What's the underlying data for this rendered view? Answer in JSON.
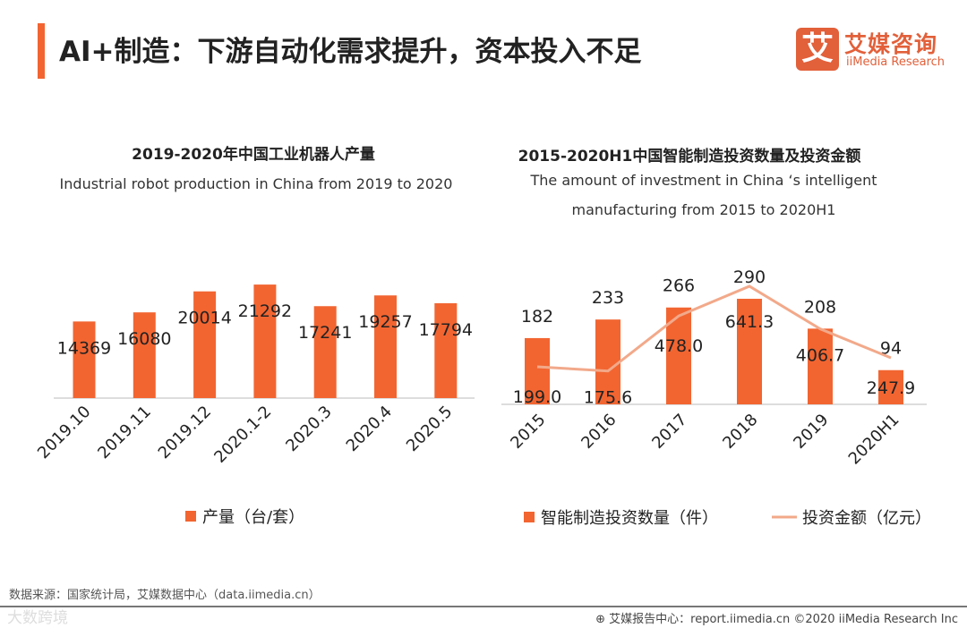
{
  "header": {
    "title": "AI+制造：下游自动化需求提升，资本投入不足",
    "logo_mark": "艾",
    "logo_cn": "艾媒咨询",
    "logo_en": "iiMedia Research"
  },
  "colors": {
    "accent": "#f26531",
    "bar": "#f26531",
    "line": "#f2a98a"
  },
  "chart_data": [
    {
      "type": "bar",
      "title": "2019-2020年中国工业机器人产量",
      "subtitle": "Industrial robot production in China from 2019 to 2020",
      "categories": [
        "2019.10",
        "2019.11",
        "2019.12",
        "2020.1-2",
        "2020.3",
        "2020.4",
        "2020.5"
      ],
      "values": [
        14369,
        16080,
        20014,
        21292,
        17241,
        19257,
        17794
      ],
      "legend": [
        "产量（台/套）"
      ],
      "legend_position": "bottom",
      "ylim": [
        0,
        25000
      ]
    },
    {
      "type": "bar+line",
      "title": "2015-2020H1中国智能制造投资数量及投资金额",
      "subtitle_line1": "The amount of investment in China ‘s intelligent",
      "subtitle_line2": "manufacturing from 2015 to 2020H1",
      "categories": [
        "2015",
        "2016",
        "2017",
        "2018",
        "2019",
        "2020H1"
      ],
      "series": [
        {
          "name": "智能制造投资数量（件）",
          "type": "bar",
          "values": [
            182,
            233,
            266,
            290,
            208,
            94
          ]
        },
        {
          "name": "投资金额（亿元）",
          "type": "line",
          "values": [
            199.0,
            175.6,
            478.0,
            641.3,
            406.7,
            247.9
          ]
        }
      ],
      "legend_position": "bottom"
    }
  ],
  "footer": {
    "source": "数据来源：国家统计局，艾媒数据中心（data.iimedia.cn）",
    "report": "⊕ 艾媒报告中心：report.iimedia.cn   ©2020  iiMedia Research  Inc",
    "watermark": "大数跨境"
  }
}
